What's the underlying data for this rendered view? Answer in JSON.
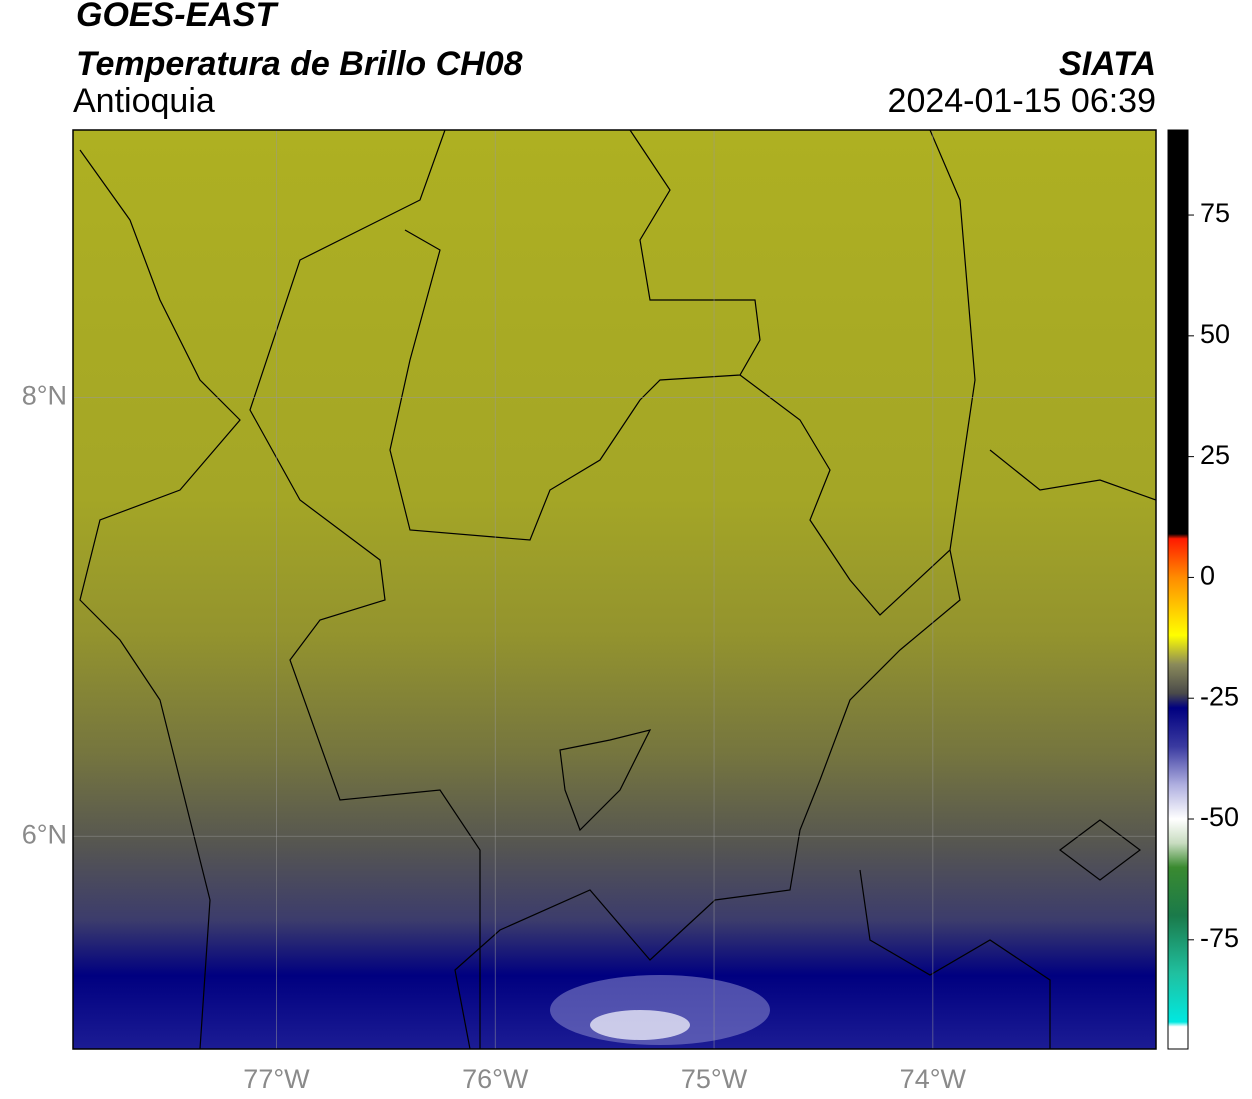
{
  "header": {
    "title": "GOES-EAST",
    "subtitle": "Temperatura de Brillo CH08",
    "source": "SIATA",
    "region": "Antioquia",
    "datetime": "2024-01-15 06:39"
  },
  "map": {
    "xlim": [
      -77.93,
      -72.98
    ],
    "ylim": [
      5.03,
      9.22
    ],
    "xticks": [
      {
        "value": -77,
        "label": "77°W"
      },
      {
        "value": -76,
        "label": "76°W"
      },
      {
        "value": -75,
        "label": "75°W"
      },
      {
        "value": -74,
        "label": "74°W"
      }
    ],
    "yticks": [
      {
        "value": 6,
        "label": "6°N"
      },
      {
        "value": 8,
        "label": "8°N"
      }
    ],
    "grid": true
  },
  "colorbar": {
    "ylim": [
      -97.6,
      92.6
    ],
    "yticks": [
      75,
      50,
      25,
      0,
      -25,
      -50,
      -75
    ],
    "stops": [
      [
        92.6,
        "#000000"
      ],
      [
        9,
        "#000000"
      ],
      [
        8,
        "#ff1a00"
      ],
      [
        0,
        "#ff8c00"
      ],
      [
        -12,
        "#ffff00"
      ],
      [
        -18,
        "#8a8a5a"
      ],
      [
        -24,
        "#4a4a4a"
      ],
      [
        -27,
        "#000080"
      ],
      [
        -35,
        "#3a3aa0"
      ],
      [
        -43,
        "#b0b0e0"
      ],
      [
        -50,
        "#ffffff"
      ],
      [
        -55,
        "#c8dcc0"
      ],
      [
        -60,
        "#3a8a30"
      ],
      [
        -70,
        "#1a7a4a"
      ],
      [
        -82,
        "#20c0a0"
      ],
      [
        -92,
        "#00e8e0"
      ],
      [
        -93,
        "#ffffff"
      ],
      [
        -97.6,
        "#ffffff"
      ]
    ]
  }
}
